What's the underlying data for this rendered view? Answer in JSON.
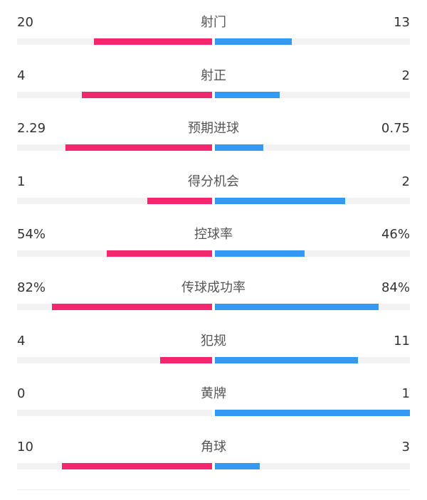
{
  "colors": {
    "home": "#f2286e",
    "away": "#3399f3",
    "track": "#f2f2f3"
  },
  "stats": [
    {
      "label": "射门",
      "home": "20",
      "away": "13",
      "home_fraction": 0.606,
      "away_fraction": 0.394
    },
    {
      "label": "射正",
      "home": "4",
      "away": "2",
      "home_fraction": 0.667,
      "away_fraction": 0.333
    },
    {
      "label": "预期进球",
      "home": "2.29",
      "away": "0.75",
      "home_fraction": 0.753,
      "away_fraction": 0.247
    },
    {
      "label": "得分机会",
      "home": "1",
      "away": "2",
      "home_fraction": 0.333,
      "away_fraction": 0.667
    },
    {
      "label": "控球率",
      "home": "54%",
      "away": "46%",
      "home_fraction": 0.54,
      "away_fraction": 0.46
    },
    {
      "label": "传球成功率",
      "home": "82%",
      "away": "84%",
      "home_fraction": 0.82,
      "away_fraction": 0.84
    },
    {
      "label": "犯规",
      "home": "4",
      "away": "11",
      "home_fraction": 0.267,
      "away_fraction": 0.733
    },
    {
      "label": "黄牌",
      "home": "0",
      "away": "1",
      "home_fraction": 0,
      "away_fraction": 1
    },
    {
      "label": "角球",
      "home": "10",
      "away": "3",
      "home_fraction": 0.769,
      "away_fraction": 0.231
    }
  ]
}
